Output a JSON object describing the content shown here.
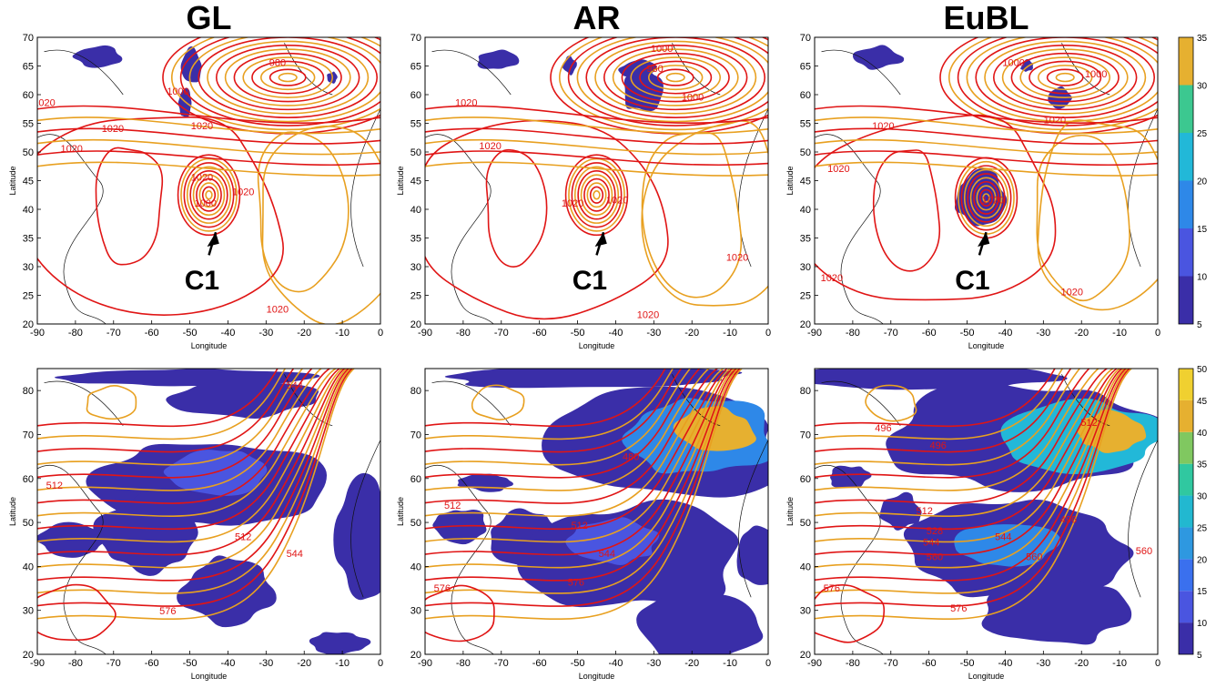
{
  "panels": [
    {
      "id": "gl-top",
      "title": "GL",
      "row": "top",
      "xlabel": "Longitude",
      "ylabel": "Latitude",
      "annotation": "C1",
      "labels": [
        "1020",
        "1000",
        "980",
        "1020",
        "1020",
        "1020",
        "1000",
        "1020",
        "1020",
        "1020"
      ]
    },
    {
      "id": "ar-top",
      "title": "AR",
      "row": "top",
      "xlabel": "Longitude",
      "ylabel": "Latitude",
      "annotation": "C1",
      "labels": [
        "1000",
        "980",
        "1020",
        "1020",
        "1020",
        "1020",
        "1000",
        "1020",
        "1020"
      ]
    },
    {
      "id": "eubl-top",
      "title": "EuBL",
      "row": "top",
      "xlabel": "Longitude",
      "ylabel": "Latitude",
      "annotation": "C1",
      "labels": [
        "1000",
        "1000",
        "1020",
        "1020",
        "1020",
        "1020",
        "1020",
        "1020"
      ]
    },
    {
      "id": "gl-bottom",
      "title": "",
      "row": "bottom",
      "xlabel": "Longitude",
      "ylabel": "Latitude",
      "labels": [
        "512",
        "512",
        "544",
        "576",
        "544"
      ]
    },
    {
      "id": "ar-bottom",
      "title": "",
      "row": "bottom",
      "xlabel": "Longitude",
      "ylabel": "Latitude",
      "labels": [
        "480",
        "512",
        "512",
        "544",
        "576",
        "576"
      ]
    },
    {
      "id": "eubl-bottom",
      "title": "",
      "row": "bottom",
      "xlabel": "Longitude",
      "ylabel": "Latitude",
      "labels": [
        "496",
        "496",
        "512",
        "496",
        "512",
        "528",
        "544",
        "560",
        "560",
        "544",
        "576",
        "576",
        "560"
      ]
    }
  ],
  "axes": {
    "x_ticks": [
      "-90",
      "-80",
      "-70",
      "-60",
      "-50",
      "-40",
      "-30",
      "-20",
      "-10",
      "0"
    ],
    "top_y_ticks": [
      "20",
      "25",
      "30",
      "35",
      "40",
      "45",
      "50",
      "55",
      "60",
      "65",
      "70"
    ],
    "bottom_y_ticks": [
      "20",
      "30",
      "40",
      "50",
      "60",
      "70",
      "80"
    ]
  },
  "colorbars": [
    {
      "id": "top-colorbar",
      "ticks": [
        "5",
        "10",
        "15",
        "20",
        "25",
        "30",
        "35"
      ]
    },
    {
      "id": "bottom-colorbar",
      "ticks": [
        "5",
        "10",
        "15",
        "20",
        "25",
        "30",
        "35",
        "40",
        "45",
        "50"
      ]
    }
  ],
  "colors": {
    "red_contour": "#e01515",
    "orange_contour": "#e8a020",
    "coast": "#111111",
    "shade_levels": [
      "#3a2ea8",
      "#4a55e0",
      "#2e88e8",
      "#22b8d8",
      "#3cc890",
      "#e6b030",
      "#f8e838",
      "#ffff40"
    ]
  }
}
